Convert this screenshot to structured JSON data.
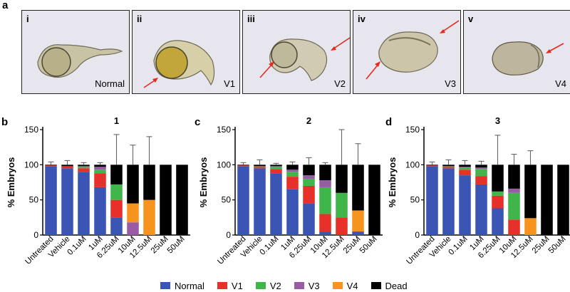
{
  "panel_letters": {
    "a": "a",
    "b": "b",
    "c": "c",
    "d": "d"
  },
  "images": [
    {
      "roman": "i",
      "caption": "Normal"
    },
    {
      "roman": "ii",
      "caption": "V1"
    },
    {
      "roman": "iii",
      "caption": "V2"
    },
    {
      "roman": "iv",
      "caption": "V3"
    },
    {
      "roman": "v",
      "caption": "V4"
    }
  ],
  "legend": [
    {
      "name": "Normal",
      "color": "#3a55b4"
    },
    {
      "name": "V1",
      "color": "#e8302a"
    },
    {
      "name": "V2",
      "color": "#3fb54a"
    },
    {
      "name": "V3",
      "color": "#9a5ba6"
    },
    {
      "name": "V4",
      "color": "#f7941d"
    },
    {
      "name": "Dead",
      "color": "#000000"
    }
  ],
  "chart_data": [
    {
      "type": "bar",
      "stacked": true,
      "title": "1",
      "ylabel": "% Embryos",
      "ylim": [
        0,
        150
      ],
      "yticks": [
        0,
        50,
        100,
        150
      ],
      "categories": [
        "Untreated",
        "Vehicle",
        "0.1uM",
        "1uM",
        "6.25uM",
        "10uM",
        "12.5uM",
        "25uM",
        "50uM"
      ],
      "series": [
        {
          "name": "Normal",
          "values": [
            98,
            95,
            90,
            68,
            25,
            0,
            0,
            0,
            0
          ]
        },
        {
          "name": "V1",
          "values": [
            1,
            3,
            5,
            20,
            25,
            0,
            0,
            0,
            0
          ]
        },
        {
          "name": "V2",
          "values": [
            0,
            0,
            2,
            5,
            22,
            0,
            0,
            0,
            0
          ]
        },
        {
          "name": "V3",
          "values": [
            0,
            0,
            1,
            4,
            0,
            18,
            0,
            0,
            0
          ]
        },
        {
          "name": "V4",
          "values": [
            0,
            0,
            0,
            0,
            0,
            27,
            50,
            0,
            0
          ]
        },
        {
          "name": "Dead",
          "values": [
            1,
            2,
            2,
            3,
            28,
            55,
            50,
            100,
            100
          ]
        }
      ],
      "error_tops": [
        104,
        106,
        103,
        103,
        143,
        128,
        140,
        null,
        null
      ]
    },
    {
      "type": "bar",
      "stacked": true,
      "title": "2",
      "ylabel": "% Embryos",
      "ylim": [
        0,
        150
      ],
      "yticks": [
        0,
        50,
        100,
        150
      ],
      "categories": [
        "Untreated",
        "Vehicle",
        "0.1uM",
        "1uM",
        "6.25uM",
        "10uM",
        "12.5uM",
        "25uM",
        "50uM"
      ],
      "series": [
        {
          "name": "Normal",
          "values": [
            98,
            95,
            88,
            65,
            45,
            5,
            0,
            5,
            0
          ]
        },
        {
          "name": "V1",
          "values": [
            1,
            2,
            6,
            18,
            25,
            25,
            25,
            0,
            0
          ]
        },
        {
          "name": "V2",
          "values": [
            0,
            1,
            3,
            7,
            10,
            38,
            35,
            0,
            0
          ]
        },
        {
          "name": "V3",
          "values": [
            0,
            0,
            1,
            3,
            5,
            10,
            0,
            0,
            0
          ]
        },
        {
          "name": "V4",
          "values": [
            0,
            0,
            0,
            0,
            0,
            0,
            0,
            30,
            0
          ]
        },
        {
          "name": "Dead",
          "values": [
            1,
            2,
            2,
            7,
            15,
            22,
            40,
            65,
            100
          ]
        }
      ],
      "error_tops": [
        103,
        107,
        102,
        104,
        110,
        103,
        150,
        130,
        null
      ]
    },
    {
      "type": "bar",
      "stacked": true,
      "title": "3",
      "ylabel": "% Embryos",
      "ylim": [
        0,
        150
      ],
      "yticks": [
        0,
        50,
        100,
        150
      ],
      "categories": [
        "Untreated",
        "Vehicle",
        "0.1uM",
        "1uM",
        "6.25uM",
        "10uM",
        "12.5uM",
        "25uM",
        "50uM"
      ],
      "series": [
        {
          "name": "Normal",
          "values": [
            98,
            95,
            85,
            72,
            38,
            0,
            0,
            0,
            0
          ]
        },
        {
          "name": "V1",
          "values": [
            1,
            2,
            8,
            12,
            18,
            22,
            0,
            0,
            0
          ]
        },
        {
          "name": "V2",
          "values": [
            0,
            1,
            3,
            10,
            6,
            38,
            0,
            0,
            0
          ]
        },
        {
          "name": "V3",
          "values": [
            0,
            0,
            1,
            2,
            0,
            6,
            0,
            0,
            0
          ]
        },
        {
          "name": "V4",
          "values": [
            0,
            0,
            0,
            0,
            0,
            0,
            24,
            0,
            0
          ]
        },
        {
          "name": "Dead",
          "values": [
            1,
            2,
            3,
            4,
            38,
            34,
            76,
            100,
            100
          ]
        }
      ],
      "error_tops": [
        104,
        107,
        106,
        105,
        142,
        115,
        120,
        null,
        null
      ]
    }
  ]
}
